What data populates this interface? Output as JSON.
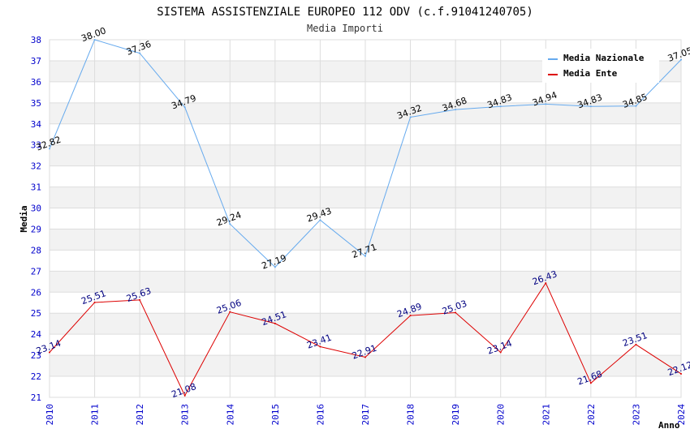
{
  "chart_data": {
    "type": "line",
    "title": "SISTEMA ASSISTENZIALE EUROPEO 112 ODV (c.f.91041240705)",
    "subtitle": "Media Importi",
    "xlabel": "Anno",
    "ylabel": "Media",
    "ylim": [
      21,
      38
    ],
    "yticks": [
      "21",
      "22",
      "23",
      "24",
      "25",
      "26",
      "27",
      "28",
      "29",
      "30",
      "31",
      "32",
      "33",
      "34",
      "35",
      "36",
      "37",
      "38"
    ],
    "categories": [
      "2010",
      "2011",
      "2012",
      "2013",
      "2014",
      "2015",
      "2016",
      "2017",
      "2018",
      "2019",
      "2020",
      "2021",
      "2022",
      "2023",
      "2024"
    ],
    "legend_position": "top-right",
    "series": [
      {
        "name": "Media Nazionale",
        "color": "#66aaee",
        "values": [
          32.82,
          38.0,
          37.36,
          34.79,
          29.24,
          27.19,
          29.43,
          27.71,
          34.32,
          34.68,
          34.83,
          34.94,
          34.83,
          34.85,
          37.05
        ],
        "labels": [
          "32.82",
          "38.00",
          "37.36",
          "34.79",
          "29.24",
          "27.19",
          "29.43",
          "27.71",
          "34.32",
          "34.68",
          "34.83",
          "34.94",
          "34.83",
          "34.85",
          "37.05"
        ]
      },
      {
        "name": "Media Ente",
        "color": "#dd0000",
        "values": [
          23.14,
          25.51,
          25.63,
          21.08,
          25.06,
          24.51,
          23.41,
          22.91,
          24.89,
          25.03,
          23.14,
          26.43,
          21.68,
          23.51,
          22.12
        ],
        "labels": [
          "23.14",
          "25.51",
          "25.63",
          "21.08",
          "25.06",
          "24.51",
          "23.41",
          "22.91",
          "24.89",
          "25.03",
          "23.14",
          "26.43",
          "21.68",
          "23.51",
          "22.12"
        ]
      }
    ]
  }
}
